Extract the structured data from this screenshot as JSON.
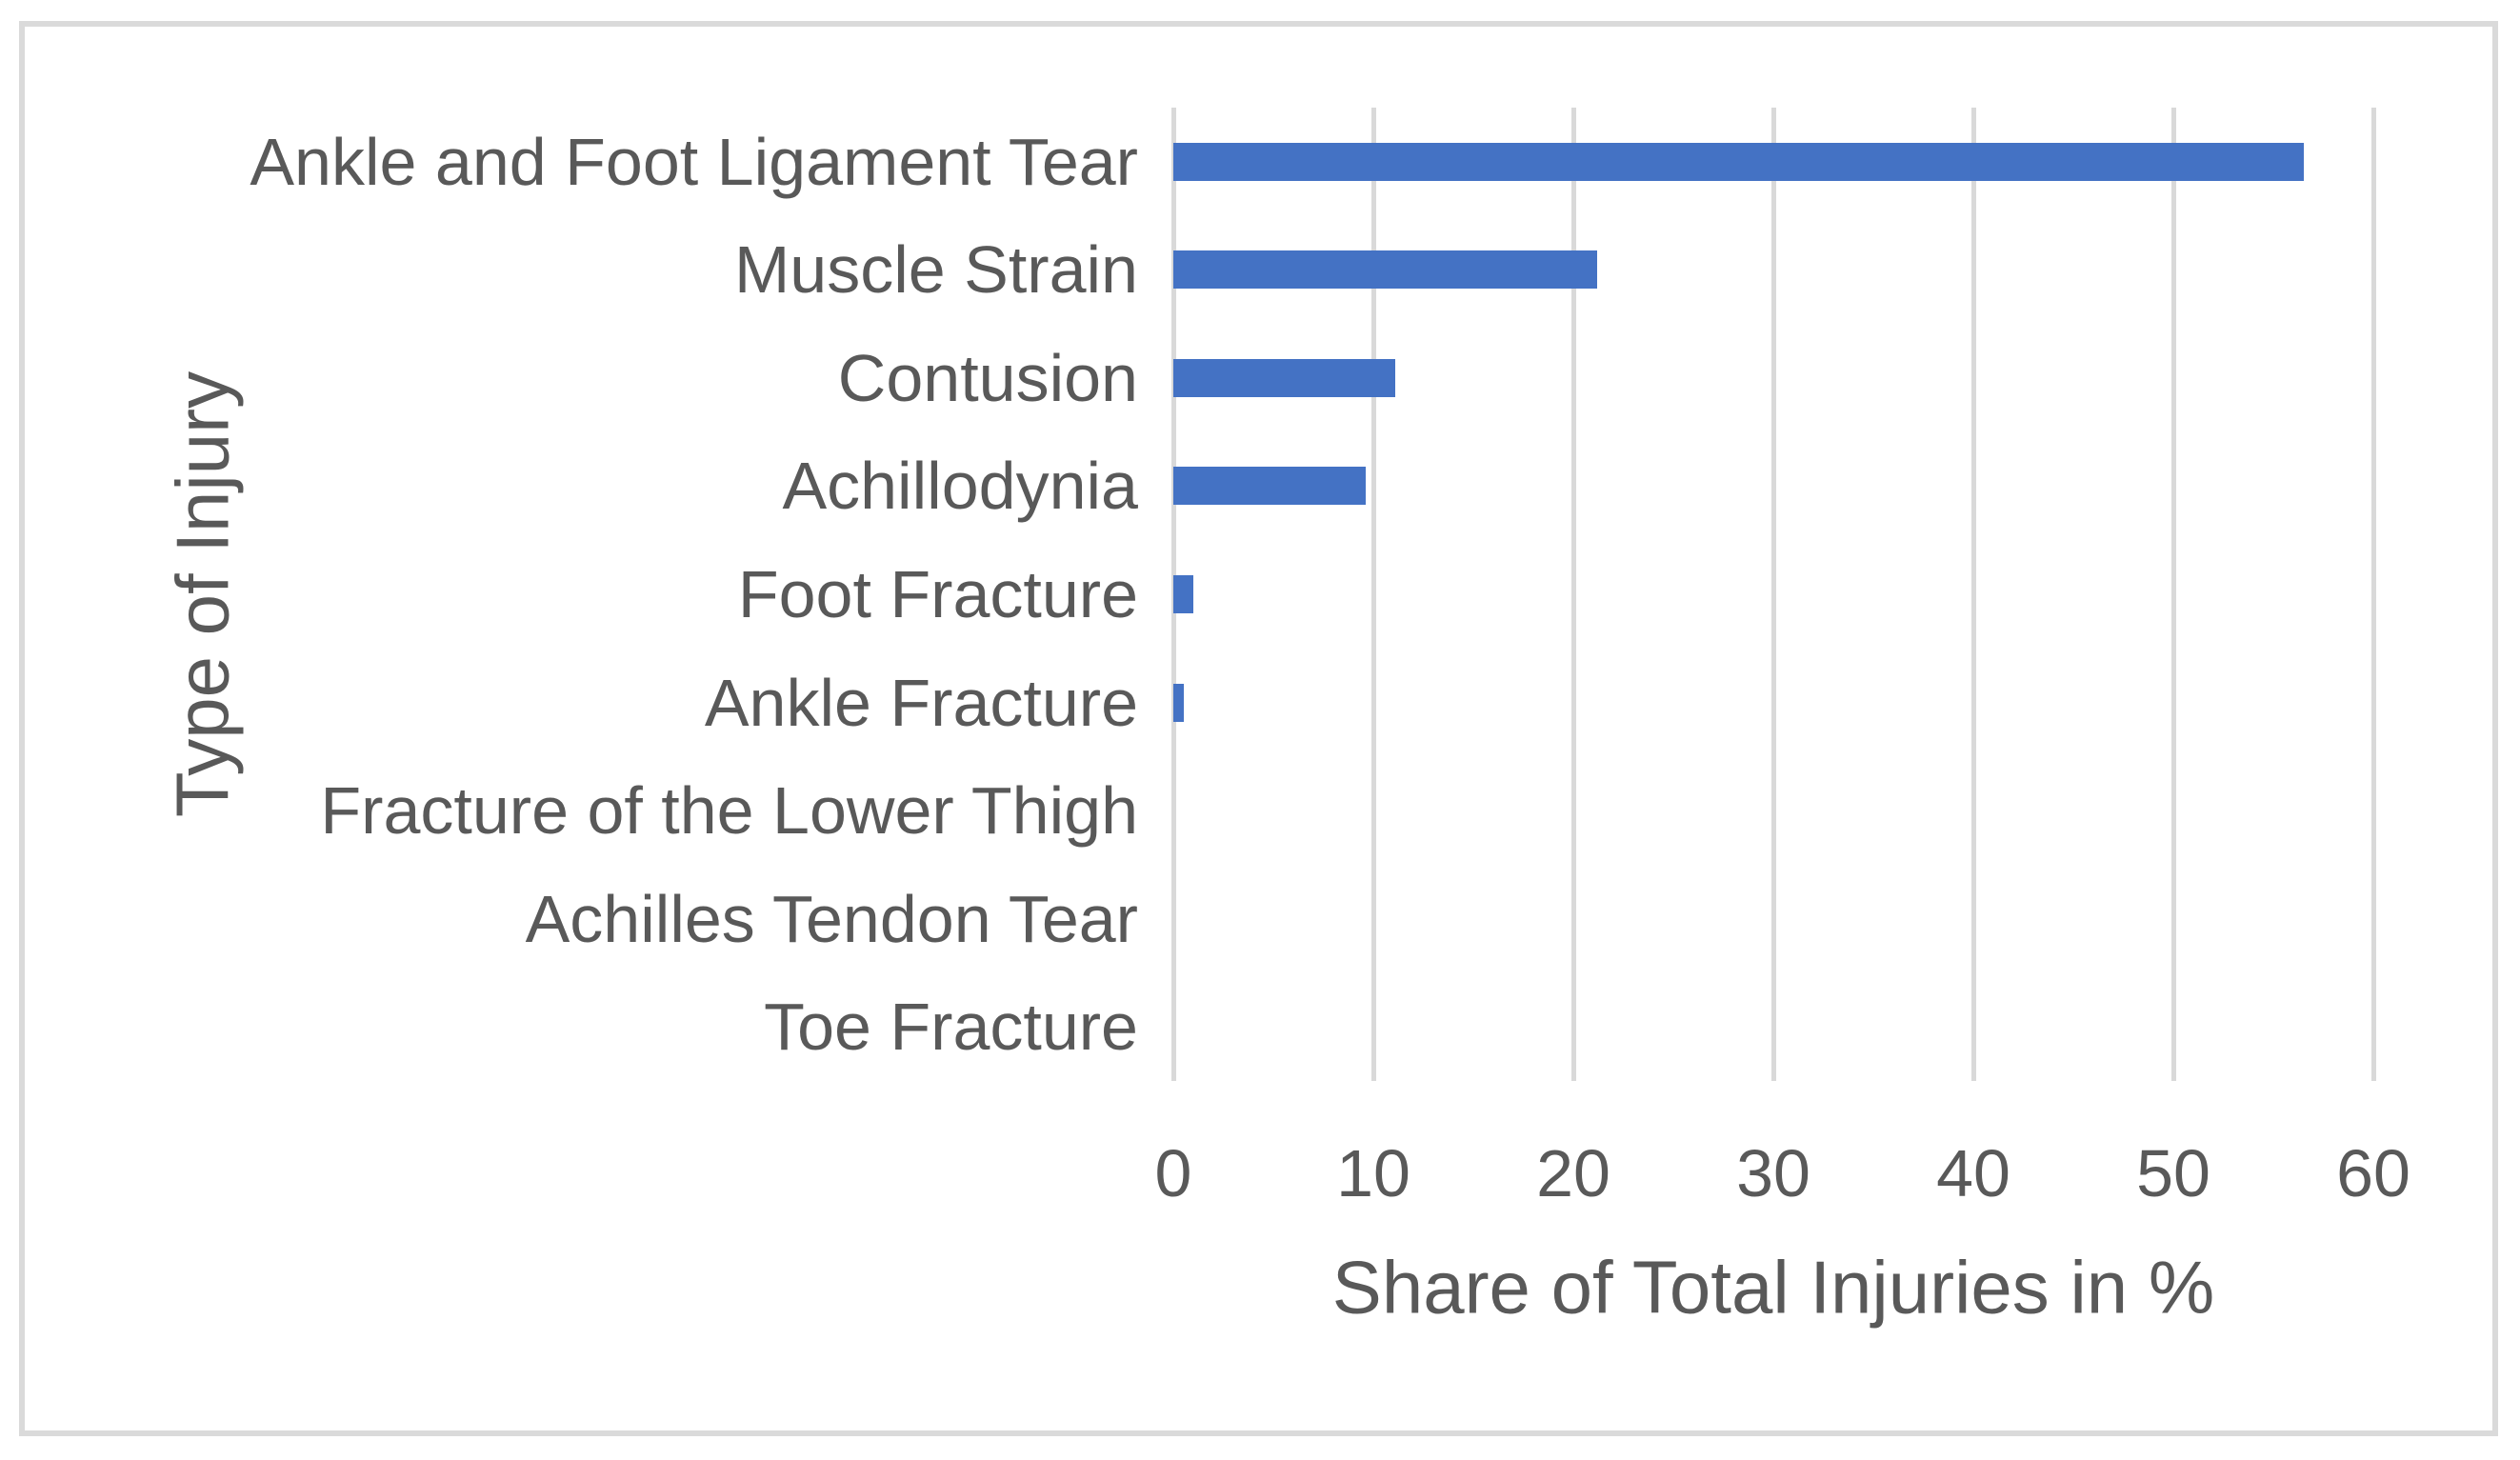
{
  "frame": {
    "border_color": "#DADADA",
    "background": "#ffffff"
  },
  "chart_data": {
    "type": "bar",
    "orientation": "horizontal",
    "title": "",
    "xlabel": "Share of Total Injuries in %",
    "ylabel": "Type of Injury",
    "categories": [
      "Ankle and Foot Ligament Tear",
      "Muscle Strain",
      "Contusion",
      "Achillodynia",
      "Foot Fracture",
      "Ankle Fracture",
      "Fracture of the Lower Thigh",
      "Achilles Tendon Tear",
      "Toe Fracture"
    ],
    "values": [
      56.5,
      21.2,
      11.1,
      9.6,
      1.0,
      0.5,
      0,
      0,
      0
    ],
    "xlim": [
      0,
      60
    ],
    "xticks": [
      0,
      10,
      20,
      30,
      40,
      50,
      60
    ],
    "grid": true,
    "legend": "none",
    "bar_color": "#4472C4",
    "gridline_color": "#D9D9D9",
    "text_color": "#595959"
  }
}
